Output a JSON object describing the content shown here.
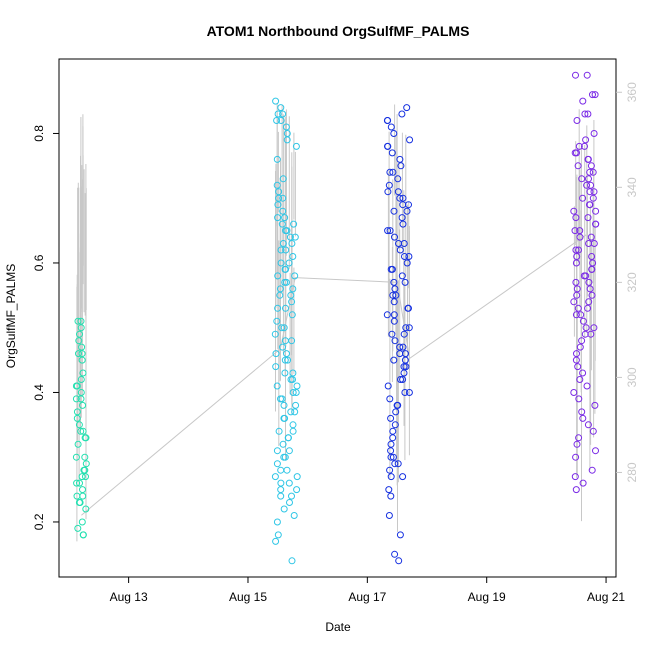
{
  "chart_data": {
    "type": "scatter",
    "title": "ATOM1 Northbound OrgSulfMF_PALMS",
    "xlabel": "Date",
    "ylabel": "OrgSulfMF_PALMS",
    "xlim": [
      "2016-08-11T20:00",
      "2016-08-21T04:00"
    ],
    "ylim": [
      0.115,
      0.915
    ],
    "y2lim": [
      258,
      367
    ],
    "x_ticks": [
      {
        "value": "2016-08-13",
        "label": "Aug 13"
      },
      {
        "value": "2016-08-15",
        "label": "Aug 15"
      },
      {
        "value": "2016-08-17",
        "label": "Aug 17"
      },
      {
        "value": "2016-08-19",
        "label": "Aug 19"
      },
      {
        "value": "2016-08-21",
        "label": "Aug 21"
      }
    ],
    "y_ticks": [
      0.2,
      0.4,
      0.6,
      0.8
    ],
    "y2_ticks": [
      280,
      300,
      320,
      340,
      360
    ],
    "grid": false,
    "series": [
      {
        "color": "#22e0b0",
        "x_range": [
          "2016-08-12T03:00",
          "2016-08-12T07:00"
        ],
        "values": [
          0.51,
          0.51,
          0.5,
          0.49,
          0.48,
          0.47,
          0.46,
          0.46,
          0.45,
          0.43,
          0.42,
          0.41,
          0.41,
          0.4,
          0.39,
          0.39,
          0.38,
          0.37,
          0.36,
          0.35,
          0.34,
          0.34,
          0.33,
          0.33,
          0.32,
          0.3,
          0.3,
          0.29,
          0.28,
          0.28,
          0.27,
          0.27,
          0.26,
          0.26,
          0.25,
          0.24,
          0.24,
          0.23,
          0.23,
          0.22,
          0.2,
          0.19,
          0.18,
          0.18
        ]
      },
      {
        "color": "#2fc6e6",
        "x_range": [
          "2016-08-15T11:00",
          "2016-08-15T20:00"
        ],
        "values": [
          0.85,
          0.84,
          0.83,
          0.83,
          0.82,
          0.82,
          0.81,
          0.8,
          0.79,
          0.78,
          0.76,
          0.73,
          0.72,
          0.71,
          0.7,
          0.7,
          0.69,
          0.68,
          0.67,
          0.67,
          0.66,
          0.66,
          0.65,
          0.65,
          0.64,
          0.64,
          0.63,
          0.63,
          0.62,
          0.62,
          0.61,
          0.6,
          0.6,
          0.59,
          0.59,
          0.58,
          0.58,
          0.57,
          0.57,
          0.56,
          0.56,
          0.55,
          0.55,
          0.54,
          0.53,
          0.53,
          0.52,
          0.51,
          0.5,
          0.5,
          0.49,
          0.48,
          0.48,
          0.47,
          0.46,
          0.46,
          0.45,
          0.45,
          0.44,
          0.43,
          0.43,
          0.42,
          0.42,
          0.41,
          0.41,
          0.4,
          0.4,
          0.39,
          0.39,
          0.38,
          0.38,
          0.37,
          0.37,
          0.36,
          0.36,
          0.35,
          0.34,
          0.34,
          0.33,
          0.33,
          0.32,
          0.31,
          0.31,
          0.3,
          0.3,
          0.29,
          0.28,
          0.28,
          0.27,
          0.27,
          0.26,
          0.26,
          0.25,
          0.25,
          0.24,
          0.24,
          0.23,
          0.22,
          0.21,
          0.2,
          0.18,
          0.17,
          0.14
        ]
      },
      {
        "color": "#1530e0",
        "x_range": [
          "2016-08-17T08:00",
          "2016-08-17T17:00"
        ],
        "values": [
          0.84,
          0.83,
          0.82,
          0.82,
          0.81,
          0.8,
          0.79,
          0.78,
          0.78,
          0.77,
          0.76,
          0.75,
          0.74,
          0.74,
          0.73,
          0.72,
          0.71,
          0.71,
          0.7,
          0.7,
          0.69,
          0.69,
          0.68,
          0.68,
          0.67,
          0.66,
          0.65,
          0.65,
          0.64,
          0.63,
          0.63,
          0.62,
          0.61,
          0.61,
          0.6,
          0.59,
          0.59,
          0.58,
          0.57,
          0.57,
          0.56,
          0.55,
          0.55,
          0.54,
          0.53,
          0.53,
          0.52,
          0.52,
          0.51,
          0.5,
          0.5,
          0.49,
          0.49,
          0.48,
          0.47,
          0.47,
          0.46,
          0.46,
          0.45,
          0.45,
          0.44,
          0.44,
          0.43,
          0.42,
          0.42,
          0.41,
          0.4,
          0.4,
          0.39,
          0.38,
          0.38,
          0.37,
          0.36,
          0.35,
          0.34,
          0.33,
          0.32,
          0.31,
          0.3,
          0.3,
          0.29,
          0.29,
          0.28,
          0.27,
          0.27,
          0.25,
          0.24,
          0.21,
          0.18,
          0.15,
          0.14
        ]
      },
      {
        "color": "#7a2ae6",
        "x_range": [
          "2016-08-20T11:00",
          "2016-08-20T20:00"
        ],
        "values": [
          0.89,
          0.89,
          0.86,
          0.86,
          0.85,
          0.83,
          0.83,
          0.82,
          0.8,
          0.79,
          0.78,
          0.78,
          0.77,
          0.77,
          0.76,
          0.76,
          0.75,
          0.75,
          0.74,
          0.74,
          0.73,
          0.73,
          0.72,
          0.72,
          0.71,
          0.71,
          0.7,
          0.7,
          0.69,
          0.69,
          0.68,
          0.68,
          0.67,
          0.67,
          0.66,
          0.66,
          0.65,
          0.65,
          0.64,
          0.64,
          0.63,
          0.63,
          0.62,
          0.62,
          0.61,
          0.61,
          0.6,
          0.6,
          0.59,
          0.59,
          0.58,
          0.58,
          0.57,
          0.57,
          0.56,
          0.56,
          0.55,
          0.55,
          0.54,
          0.54,
          0.53,
          0.53,
          0.52,
          0.52,
          0.51,
          0.5,
          0.5,
          0.49,
          0.49,
          0.48,
          0.47,
          0.46,
          0.45,
          0.44,
          0.43,
          0.42,
          0.41,
          0.4,
          0.39,
          0.38,
          0.37,
          0.36,
          0.35,
          0.34,
          0.33,
          0.32,
          0.31,
          0.3,
          0.28,
          0.27,
          0.26,
          0.25
        ]
      }
    ],
    "overlay": {
      "color": "#c8c8c8",
      "axis": "right",
      "mean_line": [
        {
          "x": "2016-08-12T05:00",
          "y": 271
        },
        {
          "x": "2016-08-15T13:00",
          "y": 306
        },
        {
          "x": "2016-08-15T19:00",
          "y": 321
        },
        {
          "x": "2016-08-17T12:00",
          "y": 320
        },
        {
          "x": "2016-08-17T17:00",
          "y": 304
        },
        {
          "x": "2016-08-20T16:00",
          "y": 330
        }
      ]
    }
  }
}
